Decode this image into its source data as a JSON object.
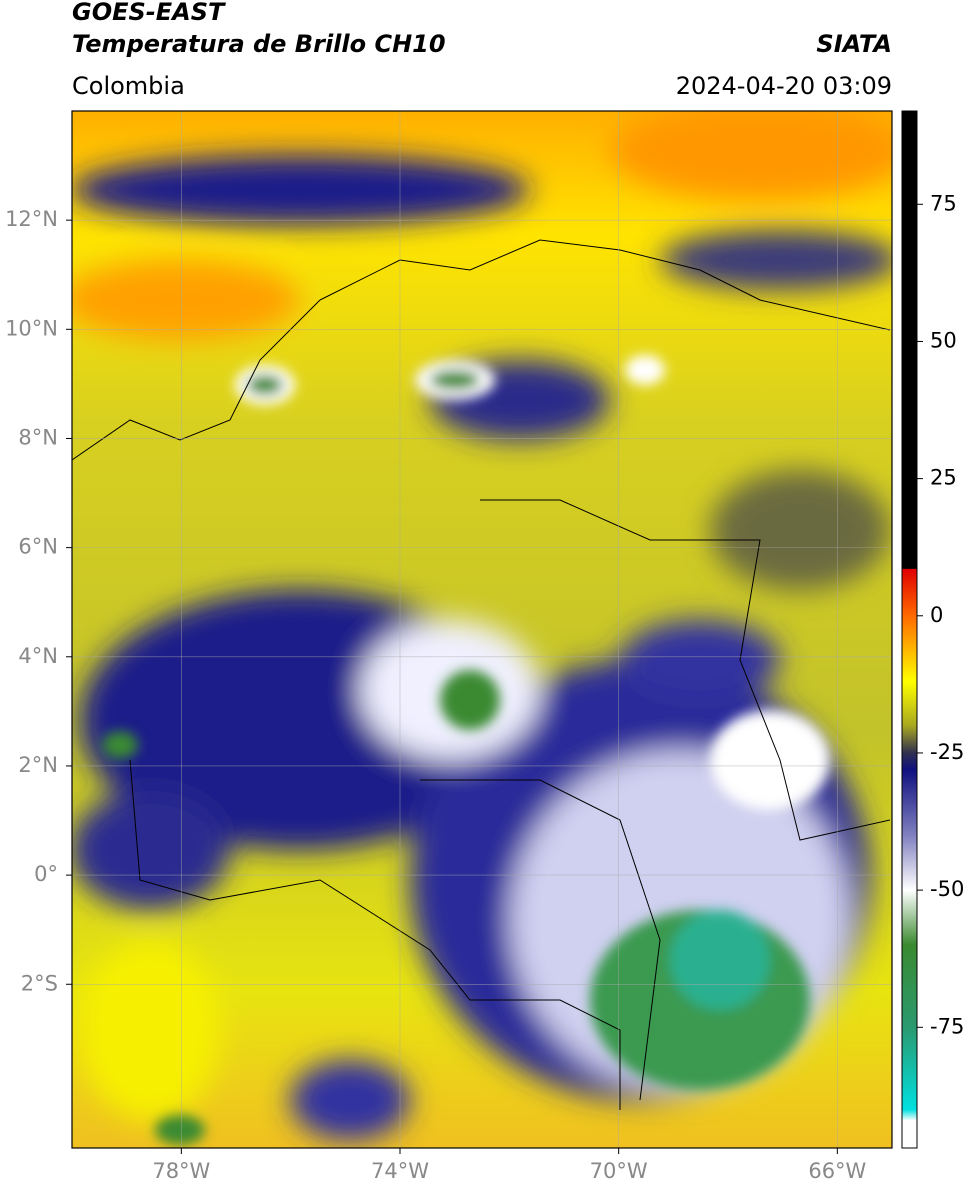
{
  "header": {
    "title": "GOES-EAST",
    "subtitle": "Temperatura de Brillo CH10",
    "source": "SIATA",
    "region": "Colombia",
    "timestamp": "2024-04-20 03:09"
  },
  "map": {
    "xlim": [
      -80,
      -65
    ],
    "ylim": [
      -5,
      14
    ],
    "xticks": [
      {
        "value": -78,
        "label": "78°W"
      },
      {
        "value": -74,
        "label": "74°W"
      },
      {
        "value": -70,
        "label": "70°W"
      },
      {
        "value": -66,
        "label": "66°W"
      }
    ],
    "yticks": [
      {
        "value": 12,
        "label": "12°N"
      },
      {
        "value": 10,
        "label": "10°N"
      },
      {
        "value": 8,
        "label": "8°N"
      },
      {
        "value": 6,
        "label": "6°N"
      },
      {
        "value": 4,
        "label": "4°N"
      },
      {
        "value": 2,
        "label": "2°N"
      },
      {
        "value": 0,
        "label": "0°"
      },
      {
        "value": -2,
        "label": "2°S"
      }
    ],
    "grid": true
  },
  "colorbar": {
    "lim": [
      -97,
      92
    ],
    "ticks": [
      75,
      50,
      25,
      0,
      -25,
      -50,
      -75
    ],
    "colormap": [
      {
        "value": 92,
        "color": "#000000"
      },
      {
        "value": 8.6,
        "color": "#000000"
      },
      {
        "value": 8.5,
        "color": "#e00000"
      },
      {
        "value": 0,
        "color": "#ff6a00"
      },
      {
        "value": -12,
        "color": "#ffff00"
      },
      {
        "value": -20,
        "color": "#a8a820"
      },
      {
        "value": -25,
        "color": "#303050"
      },
      {
        "value": -28,
        "color": "#101080"
      },
      {
        "value": -40,
        "color": "#8080c0"
      },
      {
        "value": -50,
        "color": "#ffffff"
      },
      {
        "value": -60,
        "color": "#3a8a30"
      },
      {
        "value": -75,
        "color": "#2a9a70"
      },
      {
        "value": -90,
        "color": "#00e0e0"
      },
      {
        "value": -92,
        "color": "#ffffff"
      },
      {
        "value": -97,
        "color": "#ffffff"
      }
    ]
  }
}
